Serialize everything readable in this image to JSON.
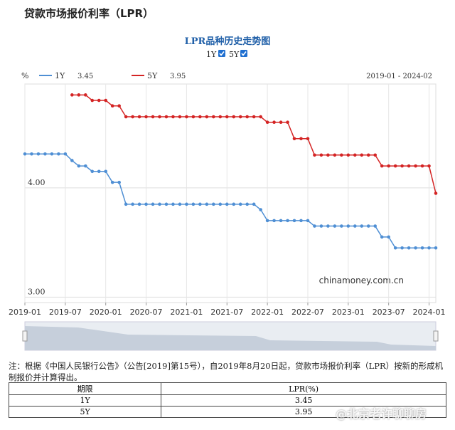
{
  "header": {
    "title": "贷款市场报价利率（LPR）"
  },
  "chart_data": {
    "type": "line",
    "title": "LPR品种历史走势图",
    "toggles": [
      "1Y",
      "5Y"
    ],
    "unit": "%",
    "range_label": "2019-01 - 2024-02",
    "watermark": "chinamoney.com.cn",
    "x": [
      "2019-01",
      "2019-02",
      "2019-03",
      "2019-04",
      "2019-05",
      "2019-06",
      "2019-07",
      "2019-08",
      "2019-09",
      "2019-10",
      "2019-11",
      "2019-12",
      "2020-01",
      "2020-02",
      "2020-03",
      "2020-04",
      "2020-05",
      "2020-06",
      "2020-07",
      "2020-08",
      "2020-09",
      "2020-10",
      "2020-11",
      "2020-12",
      "2021-01",
      "2021-02",
      "2021-03",
      "2021-04",
      "2021-05",
      "2021-06",
      "2021-07",
      "2021-08",
      "2021-09",
      "2021-10",
      "2021-11",
      "2021-12",
      "2022-01",
      "2022-02",
      "2022-03",
      "2022-04",
      "2022-05",
      "2022-06",
      "2022-07",
      "2022-08",
      "2022-09",
      "2022-10",
      "2022-11",
      "2022-12",
      "2023-01",
      "2023-02",
      "2023-03",
      "2023-04",
      "2023-05",
      "2023-06",
      "2023-07",
      "2023-08",
      "2023-09",
      "2023-10",
      "2023-11",
      "2023-12",
      "2024-01",
      "2024-02"
    ],
    "xticks": [
      "2019-01",
      "2019-07",
      "2020-01",
      "2020-07",
      "2021-01",
      "2021-07",
      "2022-01",
      "2022-07",
      "2023-01",
      "2023-07",
      "2024-01"
    ],
    "ylim": [
      2.95,
      4.95
    ],
    "yticks": [
      {
        "value": 3,
        "label": "3.00"
      },
      {
        "value": 4,
        "label": "4.00"
      }
    ],
    "grid": true,
    "series": [
      {
        "name": "1Y",
        "color": "#4f8fd4",
        "latest": 3.45,
        "values": [
          4.31,
          4.31,
          4.31,
          4.31,
          4.31,
          4.31,
          4.31,
          4.25,
          4.2,
          4.2,
          4.15,
          4.15,
          4.15,
          4.05,
          4.05,
          3.85,
          3.85,
          3.85,
          3.85,
          3.85,
          3.85,
          3.85,
          3.85,
          3.85,
          3.85,
          3.85,
          3.85,
          3.85,
          3.85,
          3.85,
          3.85,
          3.85,
          3.85,
          3.85,
          3.85,
          3.8,
          3.7,
          3.7,
          3.7,
          3.7,
          3.7,
          3.7,
          3.7,
          3.65,
          3.65,
          3.65,
          3.65,
          3.65,
          3.65,
          3.65,
          3.65,
          3.65,
          3.65,
          3.55,
          3.55,
          3.45,
          3.45,
          3.45,
          3.45,
          3.45,
          3.45,
          3.45
        ]
      },
      {
        "name": "5Y",
        "color": "#d42424",
        "latest": 3.95,
        "values": [
          null,
          null,
          null,
          null,
          null,
          null,
          null,
          4.85,
          4.85,
          4.85,
          4.8,
          4.8,
          4.8,
          4.75,
          4.75,
          4.65,
          4.65,
          4.65,
          4.65,
          4.65,
          4.65,
          4.65,
          4.65,
          4.65,
          4.65,
          4.65,
          4.65,
          4.65,
          4.65,
          4.65,
          4.65,
          4.65,
          4.65,
          4.65,
          4.65,
          4.65,
          4.6,
          4.6,
          4.6,
          4.6,
          4.45,
          4.45,
          4.45,
          4.3,
          4.3,
          4.3,
          4.3,
          4.3,
          4.3,
          4.3,
          4.3,
          4.3,
          4.3,
          4.2,
          4.2,
          4.2,
          4.2,
          4.2,
          4.2,
          4.2,
          4.2,
          3.95
        ]
      }
    ]
  },
  "note": "注：根据《中国人民银行公告》（公告[2019]第15号），自2019年8月20日起，贷款市场报价利率（LPR）按新的形成机制报价并计算得出。",
  "table": {
    "header": [
      "期限",
      "LPR(%)"
    ],
    "rows": [
      [
        "1Y",
        "3.45"
      ],
      [
        "5Y",
        "3.95"
      ]
    ]
  },
  "overlay": "@北京老许聊聊房"
}
